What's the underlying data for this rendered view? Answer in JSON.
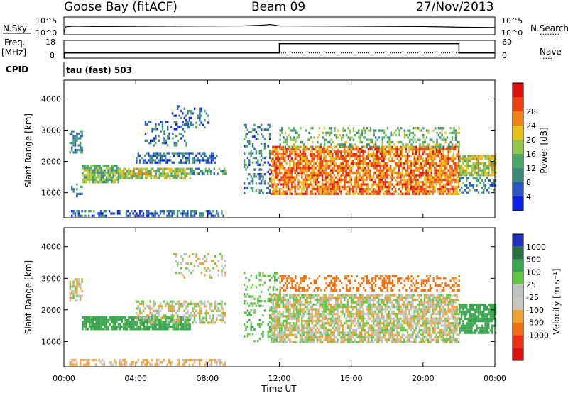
{
  "header": {
    "station": "Goose Bay (fitACF)",
    "beam": "Beam 09",
    "date": "27/Nov/2013"
  },
  "labels": {
    "nsky": "N.Sky",
    "nsearch": "N.Search",
    "freq": "Freq.",
    "freq_unit": "[MHz]",
    "nave": "Nave",
    "cpid": "CPID",
    "cpid_text": "tau (fast) 503",
    "dots": "········",
    "dots_short": "····"
  },
  "colors": {
    "power": [
      "#1020e6",
      "#2a58c6",
      "#3e8a7a",
      "#4aa86a",
      "#90c84a",
      "#e8c018",
      "#f08018",
      "#f04010",
      "#e01010"
    ],
    "velocity": [
      "#2030c0",
      "#2b7040",
      "#3aa650",
      "#60c840",
      "#c0c0c0",
      "#c8c8c0",
      "#f0a030",
      "#f07010",
      "#ee3010",
      "#e01010"
    ],
    "grey_scatter": "#c3c3bc"
  },
  "chart_data": [
    {
      "type": "line",
      "name": "nsky-nsearch",
      "left_ticks": [
        "10^5",
        "10^0"
      ],
      "right_ticks": [
        "10^5",
        "10^0"
      ],
      "series": [
        {
          "name": "N.Sky",
          "style": "solid",
          "x": [
            0,
            0.1,
            0.5,
            2,
            6,
            10,
            11,
            11.5,
            12,
            16,
            20,
            22,
            24
          ],
          "y": [
            0.5,
            2.2,
            2.4,
            2.3,
            2.4,
            2.5,
            2.7,
            2.9,
            2.5,
            2.4,
            2.3,
            2.1,
            2.0
          ]
        },
        {
          "name": "N.Search",
          "style": "dotted",
          "x": [],
          "y": []
        }
      ]
    },
    {
      "type": "line",
      "name": "freq-nave",
      "left_ticks": [
        "18",
        "8"
      ],
      "right_ticks": [
        "60",
        "0"
      ],
      "series": [
        {
          "name": "Freq.",
          "style": "solid",
          "x": [
            0,
            0.05,
            12,
            12,
            22,
            22,
            24
          ],
          "y": [
            8,
            11,
            11,
            16.5,
            16.5,
            11,
            11
          ]
        },
        {
          "name": "Nave",
          "style": "dotted",
          "x": [
            0,
            12,
            22,
            24
          ],
          "y": [
            11,
            11,
            11,
            11
          ]
        }
      ]
    },
    {
      "type": "heatmap",
      "name": "power",
      "ylabel": "Slant Range [km]",
      "yticks": [
        1000,
        2000,
        3000,
        4000
      ],
      "ylim": [
        200,
        4600
      ],
      "xlim": [
        0,
        24
      ],
      "colorbar": {
        "label": "Power [dB]",
        "ticks": [
          4,
          8,
          12,
          16,
          20,
          24,
          28
        ]
      },
      "regions": [
        {
          "x": [
            0.3,
            1.0
          ],
          "y": [
            2300,
            3000
          ],
          "v": 8,
          "d": 0.6
        },
        {
          "x": [
            0.3,
            1.0
          ],
          "y": [
            900,
            1300
          ],
          "v": 8,
          "d": 0.3
        },
        {
          "x": [
            0.3,
            9.0
          ],
          "y": [
            250,
            450
          ],
          "v": 6,
          "d": 0.5
        },
        {
          "x": [
            1.0,
            3.0
          ],
          "y": [
            1350,
            1900
          ],
          "v": 14,
          "d": 0.85
        },
        {
          "x": [
            3.0,
            7.0
          ],
          "y": [
            1500,
            1800
          ],
          "v": 17,
          "d": 0.8
        },
        {
          "x": [
            7.0,
            9.0
          ],
          "y": [
            1600,
            1800
          ],
          "v": 10,
          "d": 0.6
        },
        {
          "x": [
            4.0,
            8.5
          ],
          "y": [
            2000,
            2300
          ],
          "v": 7,
          "d": 0.6
        },
        {
          "x": [
            6.0,
            8.0
          ],
          "y": [
            3100,
            3800
          ],
          "v": 7,
          "d": 0.25
        },
        {
          "x": [
            4.5,
            7.0
          ],
          "y": [
            2500,
            3300
          ],
          "v": 7,
          "d": 0.3
        },
        {
          "x": [
            10.0,
            11.5
          ],
          "y": [
            1000,
            3200
          ],
          "v": 8,
          "d": 0.3
        },
        {
          "x": [
            11.5,
            22.0
          ],
          "y": [
            1000,
            2500
          ],
          "v": 24,
          "d": 0.75
        },
        {
          "x": [
            12.0,
            22.0
          ],
          "y": [
            2500,
            3100
          ],
          "v": 13,
          "d": 0.35
        },
        {
          "x": [
            22.0,
            24.0
          ],
          "y": [
            1600,
            2200
          ],
          "v": 17,
          "d": 0.8
        },
        {
          "x": [
            22.0,
            24.0
          ],
          "y": [
            1000,
            1500
          ],
          "v": 9,
          "d": 0.4
        }
      ]
    },
    {
      "type": "heatmap",
      "name": "velocity",
      "ylabel": "Slant Range [km]",
      "yticks": [
        1000,
        2000,
        3000,
        4000
      ],
      "ylim": [
        200,
        4600
      ],
      "xlim": [
        0,
        24
      ],
      "xticks": [
        "00:00",
        "04:00",
        "08:00",
        "12:00",
        "16:00",
        "20:00",
        "00:00"
      ],
      "xlabel": "Time UT",
      "colorbar": {
        "label": "Velocity [m s⁻¹]",
        "ticks": [
          1000,
          500,
          100,
          25,
          -25,
          -100,
          -500,
          -1000
        ]
      },
      "regions": [
        {
          "x": [
            0.3,
            1.0
          ],
          "y": [
            2300,
            3000
          ],
          "v": -10,
          "d": 0.6
        },
        {
          "x": [
            0.3,
            9.0
          ],
          "y": [
            250,
            450
          ],
          "v": -40,
          "d": 0.5
        },
        {
          "x": [
            1.0,
            7.0
          ],
          "y": [
            1400,
            1800
          ],
          "v": 150,
          "d": 0.85
        },
        {
          "x": [
            4.0,
            9.0
          ],
          "y": [
            1600,
            2300
          ],
          "v": 0,
          "d": 0.5
        },
        {
          "x": [
            6.0,
            9.0
          ],
          "y": [
            3000,
            3800
          ],
          "v": 0,
          "d": 0.2
        },
        {
          "x": [
            10.0,
            12.0
          ],
          "y": [
            1000,
            3200
          ],
          "v": 80,
          "d": 0.25
        },
        {
          "x": [
            11.5,
            22.0
          ],
          "y": [
            1000,
            2500
          ],
          "v": 0,
          "d": 0.75
        },
        {
          "x": [
            12.0,
            22.0
          ],
          "y": [
            2600,
            3100
          ],
          "v": -150,
          "d": 0.35
        },
        {
          "x": [
            22.0,
            24.0
          ],
          "y": [
            1300,
            2200
          ],
          "v": 200,
          "d": 0.8
        }
      ]
    }
  ]
}
